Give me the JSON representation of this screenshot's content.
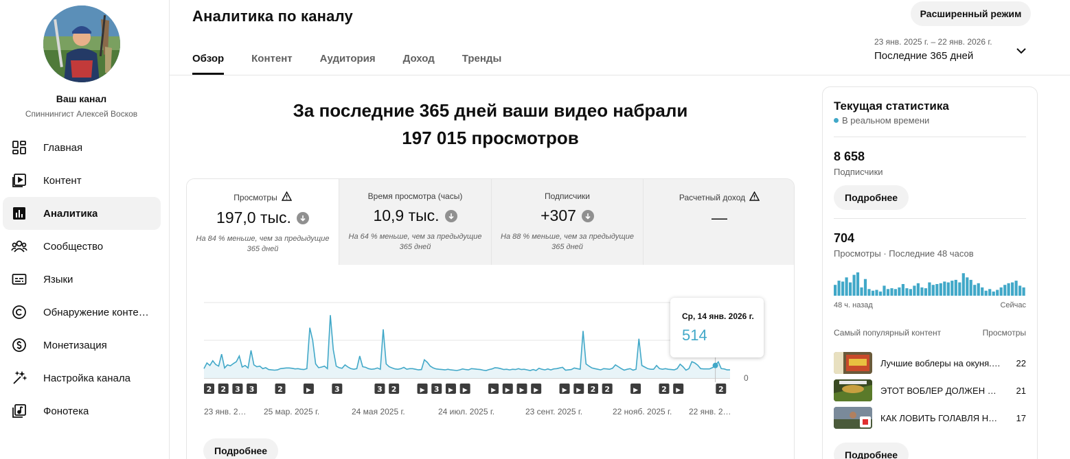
{
  "sidebar": {
    "channel_title": "Ваш канал",
    "channel_name": "Спиннингист Алексей Восков",
    "items": [
      {
        "label": "Главная",
        "icon": "dashboard-icon",
        "active": false
      },
      {
        "label": "Контент",
        "icon": "content-icon",
        "active": false
      },
      {
        "label": "Аналитика",
        "icon": "analytics-icon",
        "active": true
      },
      {
        "label": "Сообщество",
        "icon": "community-icon",
        "active": false
      },
      {
        "label": "Языки",
        "icon": "subtitles-icon",
        "active": false
      },
      {
        "label": "Обнаружение контен…",
        "icon": "copyright-icon",
        "active": false
      },
      {
        "label": "Монетизация",
        "icon": "monetization-icon",
        "active": false
      },
      {
        "label": "Настройка канала",
        "icon": "customization-icon",
        "active": false
      },
      {
        "label": "Фонотека",
        "icon": "audio-library-icon",
        "active": false
      }
    ]
  },
  "header": {
    "title": "Аналитика по каналу",
    "advanced_mode": "Расширенный режим",
    "tabs": [
      "Обзор",
      "Контент",
      "Аудитория",
      "Доход",
      "Тренды"
    ],
    "date_range": "23 янв. 2025 г. – 22 янв. 2026 г.",
    "period": "Последние 365 дней"
  },
  "summary": {
    "line1": "За последние 365 дней ваши видео набрали",
    "line2": "197 015 просмотров"
  },
  "metrics": [
    {
      "label": "Просмотры",
      "value": "197,0 тыс.",
      "note": "На 84 % меньше, чем за предыдущие 365 дней",
      "warning": true,
      "trend": "down"
    },
    {
      "label": "Время просмотра (часы)",
      "value": "10,9 тыс.",
      "note": "На 64 % меньше, чем за предыдущие 365 дней",
      "warning": false,
      "trend": "down"
    },
    {
      "label": "Подписчики",
      "value": "+307",
      "note": "На 88 % меньше, чем за предыдущие 365 дней",
      "warning": false,
      "trend": "down"
    },
    {
      "label": "Расчетный доход",
      "value": "—",
      "note": "",
      "warning": true,
      "trend": "none"
    }
  ],
  "chart_data": {
    "type": "line",
    "xlabel": "",
    "ylabel": "",
    "x_ticks": [
      "23 янв. 2…",
      "25 мар. 2025 г.",
      "24 мая 2025 г.",
      "24 июл. 2025 г.",
      "23 сент. 2025 г.",
      "22 нояб. 2025 г.",
      "22 янв. 2…"
    ],
    "y_ticks": [
      "0"
    ],
    "ylim": [
      0,
      2400
    ],
    "grid": true,
    "color": "#41a8c8",
    "series": [
      {
        "values": [
          300,
          480,
          400,
          550,
          430,
          380,
          760,
          320,
          420,
          390,
          460,
          520,
          700,
          350,
          400,
          320,
          880,
          420,
          360,
          380,
          300,
          330,
          270,
          260,
          250,
          260,
          300,
          310,
          320,
          320,
          310,
          290,
          300,
          280,
          270,
          300,
          1600,
          1200,
          450,
          330,
          350,
          380,
          300,
          2000,
          900,
          380,
          330,
          310,
          420,
          350,
          300,
          280,
          300,
          700,
          360,
          340,
          300,
          280,
          290,
          320,
          280,
          1550,
          450,
          360,
          320,
          290,
          280,
          300,
          340,
          280,
          300,
          300,
          280,
          260,
          270,
          580,
          500,
          380,
          320,
          290,
          280,
          270,
          260,
          280,
          260,
          250,
          240,
          260,
          290,
          270,
          260,
          300,
          290,
          280,
          270,
          250,
          240,
          270,
          290,
          330,
          320,
          300,
          270,
          280,
          260,
          280,
          270,
          300,
          270,
          280,
          260,
          240,
          270,
          240,
          310,
          280,
          260,
          290,
          260,
          290,
          300,
          320,
          340,
          250,
          260,
          270,
          320,
          300,
          280,
          1500,
          450,
          380,
          320,
          300,
          280,
          260,
          300,
          290,
          280,
          310,
          420,
          360,
          300,
          250,
          280,
          300,
          250,
          280,
          1250,
          400,
          350,
          300,
          280,
          280,
          400,
          300,
          280,
          300,
          280,
          270,
          260,
          300,
          440,
          360,
          250,
          300,
          520,
          480,
          410,
          300,
          290,
          290,
          290,
          330,
          400,
          514,
          300,
          290,
          260,
          260
        ]
      }
    ],
    "annotation_markers": [
      "2",
      "2",
      "3",
      "3",
      "2",
      "▶",
      "3",
      "3",
      "2",
      "▶",
      "3",
      "▶",
      "▶",
      "▶",
      "▶",
      "▶",
      "▶",
      "▶",
      "▶",
      "2",
      "2",
      "▶",
      "2",
      "▶",
      "2"
    ],
    "tooltip": {
      "date": "Ср, 14 янв. 2026 г.",
      "value": "514"
    }
  },
  "more_label": "Подробнее",
  "realtime": {
    "title": "Текущая статистика",
    "live_label": "В реальном времени",
    "subscribers_value": "8 658",
    "subscribers_label": "Подписчики",
    "more_label": "Подробнее",
    "views_value": "704",
    "views_label": "Просмотры · Последние 48 часов",
    "bars": [
      13,
      18,
      17,
      22,
      16,
      25,
      28,
      10,
      20,
      8,
      6,
      7,
      5,
      12,
      8,
      9,
      8,
      10,
      14,
      9,
      8,
      12,
      15,
      10,
      9,
      16,
      13,
      14,
      15,
      17,
      16,
      18,
      19,
      16,
      27,
      22,
      19,
      13,
      15,
      10,
      6,
      8,
      5,
      7,
      10,
      13,
      15,
      16,
      18,
      12,
      10
    ],
    "axis_left": "48 ч. назад",
    "axis_right": "Сейчас",
    "top_content_label": "Самый популярный контент",
    "top_content_metric": "Просмотры",
    "videos": [
      {
        "title": "Лучшие воблеры на окуня. Честный обзор",
        "views": "22"
      },
      {
        "title": "ЭТОТ ВОБЛЕР ДОЛЖЕН БЫТЬ У КАЖДОГО",
        "views": "21"
      },
      {
        "title": "КАК ЛОВИТЬ ГОЛАВЛЯ НА ВОБЛЕРЫ",
        "views": "17"
      }
    ],
    "more_label_2": "Подробнее"
  }
}
